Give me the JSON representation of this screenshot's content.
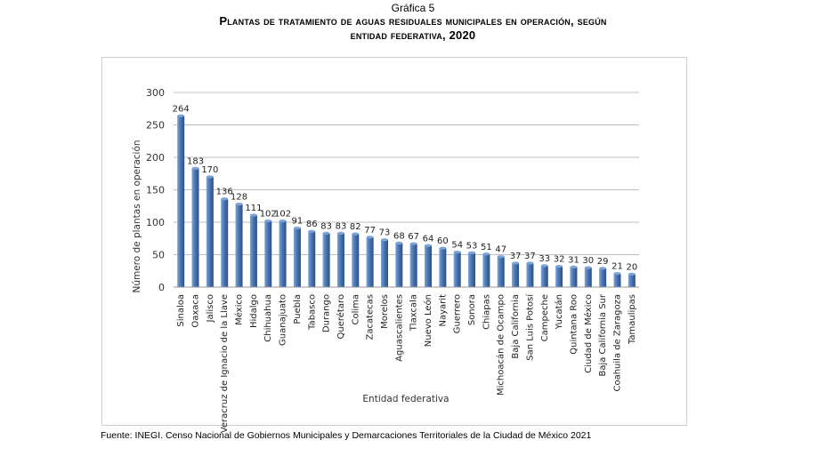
{
  "header": {
    "caption": "Gráfica 5",
    "title_line1": "Plantas de tratamiento de aguas residuales municipales en operación, según",
    "title_line2": "entidad federativa, 2020"
  },
  "source": "Fuente: INEGI. Censo Nacional de Gobiernos Municipales y Demarcaciones Territoriales de la Ciudad de México 2021",
  "colors": {
    "bar": "#4a76b5",
    "bar_dark": "#2c4f85",
    "bar_light": "#7ea3d6",
    "grid": "#bfbfbf"
  },
  "chart_data": {
    "type": "bar",
    "xlabel": "Entidad federativa",
    "ylabel": "Número de plantas  en  operación",
    "ylim": [
      0,
      300
    ],
    "yticks": [
      0,
      50,
      100,
      150,
      200,
      250,
      300
    ],
    "grid": true,
    "legend": "none",
    "categories": [
      "Sinaloa",
      "Oaxaca",
      "Jalisco",
      "Veracruz de Ignacio de la Llave",
      "México",
      "Hidalgo",
      "Chihuahua",
      "Guanajuato",
      "Puebla",
      "Tabasco",
      "Durango",
      "Querétaro",
      "Colima",
      "Zacatecas",
      "Morelos",
      "Aguascalientes",
      "Tlaxcala",
      "Nuevo León",
      "Nayarit",
      "Guerrero",
      "Sonora",
      "Chiapas",
      "Michoacán de Ocampo",
      "Baja California",
      "San Luis Potosí",
      "Campeche",
      "Yucatán",
      "Quintana Roo",
      "Ciudad de México",
      "Baja California Sur",
      "Coahuila de Zaragoza",
      "Tamaulipas"
    ],
    "values": [
      264,
      183,
      170,
      136,
      128,
      111,
      102,
      102,
      91,
      86,
      83,
      83,
      82,
      77,
      73,
      68,
      67,
      64,
      60,
      54,
      53,
      51,
      47,
      37,
      37,
      33,
      32,
      31,
      30,
      29,
      21,
      20
    ]
  }
}
